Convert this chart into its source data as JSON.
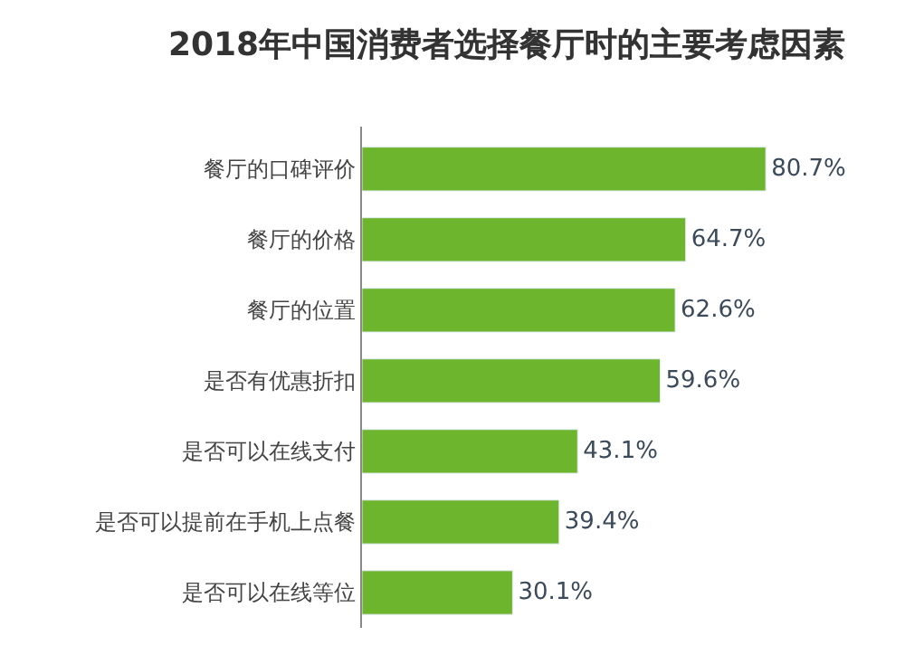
{
  "chart_data": {
    "type": "bar",
    "orientation": "horizontal",
    "title": "2018年中国消费者选择餐厅时的主要考虑因素",
    "categories": [
      "餐厅的口碑评价",
      "餐厅的价格",
      "餐厅的位置",
      "是否有优惠折扣",
      "是否可以在线支付",
      "是否可以提前在手机上点餐",
      "是否可以在线等位"
    ],
    "values": [
      80.7,
      64.7,
      62.6,
      59.6,
      43.1,
      39.4,
      30.1
    ],
    "value_labels": [
      "80.7%",
      "64.7%",
      "62.6%",
      "59.6%",
      "43.1%",
      "39.4%",
      "30.1%"
    ],
    "color": "#6cb52d"
  }
}
